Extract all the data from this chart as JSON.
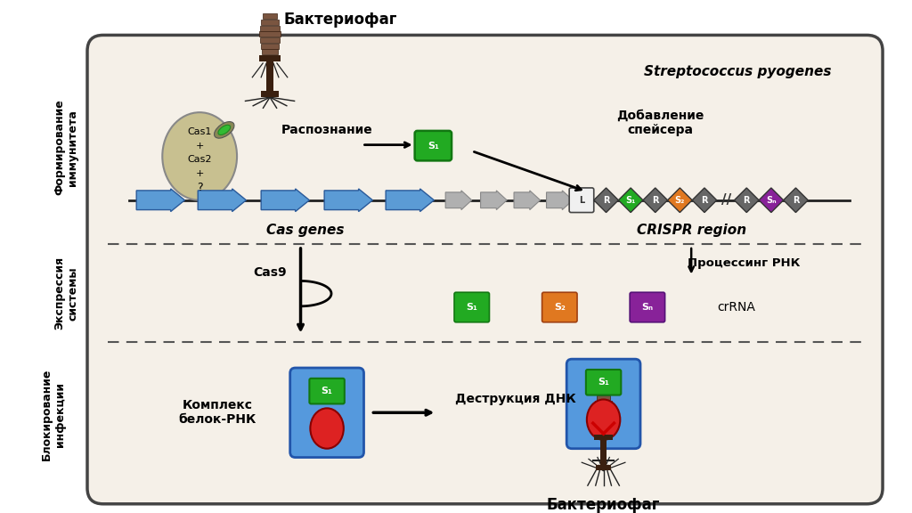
{
  "bg_color": "#ffffff",
  "cell_bg": "#f5f0e8",
  "cell_border": "#444444",
  "title_strep": "Streptococcus pyogenes",
  "label_top_phage": "Бактериофаг",
  "label_bot_phage": "Бактериофаг",
  "label_recognition": "Распознание",
  "label_addition": "Добавление\nспейсера",
  "label_cas_genes": "Cas genes",
  "label_crispr": "CRISPR region",
  "label_processing": "Процессинг РНК",
  "label_cas9": "Cas9",
  "label_crRNA": "crRNA",
  "label_complex": "Комплекс\nбелок-РНК",
  "label_destruction": "Деструкция ДНК",
  "cas_box_text": "Cas1\n+\nCas2\n+\n?",
  "s1_color": "#22aa22",
  "s2_color": "#e07820",
  "sn_color": "#882299",
  "r_color": "#666666",
  "blue_arrow_color": "#5b9bd5",
  "gray_arrow_color": "#b0b0b0",
  "phage_color": "#7a5540",
  "phage_dark": "#3a2010"
}
